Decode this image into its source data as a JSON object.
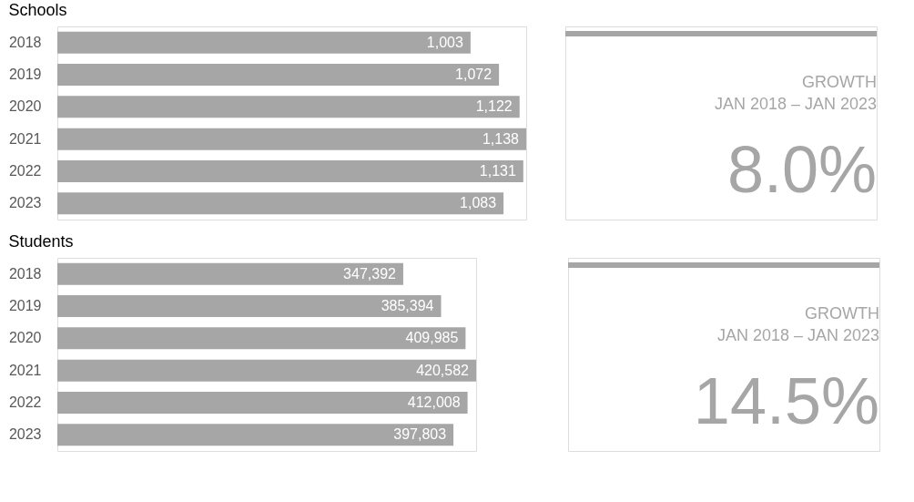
{
  "chart_data": [
    {
      "type": "bar",
      "title": "Schools",
      "orientation": "horizontal",
      "categories": [
        "2018",
        "2019",
        "2020",
        "2021",
        "2022",
        "2023"
      ],
      "values": [
        1003,
        1072,
        1122,
        1138,
        1131,
        1083
      ],
      "value_labels": [
        "1,003",
        "1,072",
        "1,122",
        "1,138",
        "1,131",
        "1,083"
      ],
      "color": "#a6a6a6"
    },
    {
      "type": "other",
      "title": "GROWTH",
      "subtitle": "JAN 2018 – JAN 2023",
      "annotations": [
        "8.0%"
      ]
    },
    {
      "type": "bar",
      "title": "Students",
      "orientation": "horizontal",
      "categories": [
        "2018",
        "2019",
        "2020",
        "2021",
        "2022",
        "2023"
      ],
      "values": [
        347392,
        385394,
        409985,
        420582,
        412008,
        397803
      ],
      "value_labels": [
        "347,392",
        "385,394",
        "409,985",
        "420,582",
        "412,008",
        "397,803"
      ],
      "color": "#a6a6a6"
    },
    {
      "type": "other",
      "title": "GROWTH",
      "subtitle": "JAN 2018 – JAN 2023",
      "annotations": [
        "14.5%"
      ]
    }
  ]
}
